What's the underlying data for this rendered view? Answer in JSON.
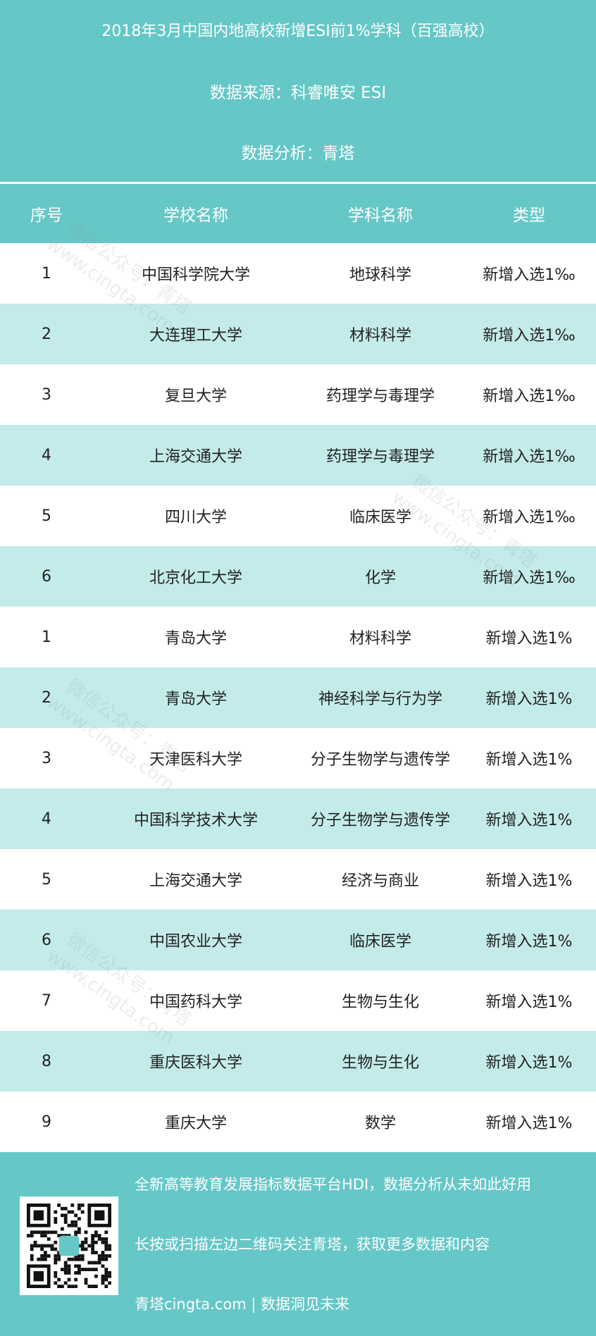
{
  "header": {
    "title": "2018年3月中国内地高校新增ESI前1%学科（百强高校）",
    "source": "数据来源：科睿唯安 ESI",
    "analysis": "数据分析：青塔"
  },
  "columns": [
    "序号",
    "学校名称",
    "学科名称",
    "类型"
  ],
  "rows": [
    [
      "1",
      "中国科学院大学",
      "地球科学",
      "新增入选1‰"
    ],
    [
      "2",
      "大连理工大学",
      "材料科学",
      "新增入选1‰"
    ],
    [
      "3",
      "复旦大学",
      "药理学与毒理学",
      "新增入选1‰"
    ],
    [
      "4",
      "上海交通大学",
      "药理学与毒理学",
      "新增入选1‰"
    ],
    [
      "5",
      "四川大学",
      "临床医学",
      "新增入选1‰"
    ],
    [
      "6",
      "北京化工大学",
      "化学",
      "新增入选1‰"
    ],
    [
      "1",
      "青岛大学",
      "材料科学",
      "新增入选1%"
    ],
    [
      "2",
      "青岛大学",
      "神经科学与行为学",
      "新增入选1%"
    ],
    [
      "3",
      "天津医科大学",
      "分子生物学与遗传学",
      "新增入选1%"
    ],
    [
      "4",
      "中国科学技术大学",
      "分子生物学与遗传学",
      "新增入选1%"
    ],
    [
      "5",
      "上海交通大学",
      "经济与商业",
      "新增入选1%"
    ],
    [
      "6",
      "中国农业大学",
      "临床医学",
      "新增入选1%"
    ],
    [
      "7",
      "中国药科大学",
      "生物与生化",
      "新增入选1%"
    ],
    [
      "8",
      "重庆医科大学",
      "生物与生化",
      "新增入选1%"
    ],
    [
      "9",
      "重庆大学",
      "数学",
      "新增入选1%"
    ]
  ],
  "watermark": [
    "微信公众号：青塔",
    "www.cingta.com"
  ],
  "footer": {
    "line1": "全新高等教育发展指标数据平台HDI，数据分析从未如此好用",
    "line2": "长按或扫描左边二维码关注青塔，获取更多数据和内容",
    "line3": "青塔cingta.com | 数据洞见未来",
    "qr_icon": "qr-code"
  },
  "colors": {
    "teal": "#66c7c7",
    "row_alt": "#c3ebea"
  }
}
